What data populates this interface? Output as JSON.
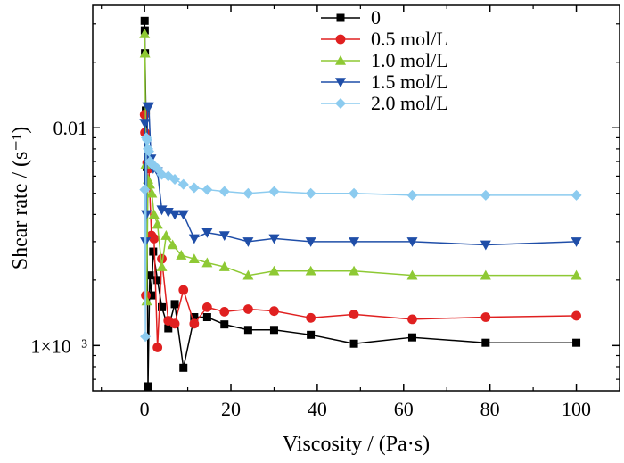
{
  "chart_data": {
    "type": "line",
    "xlabel": "Viscosity / (Pa·s)",
    "ylabel": "Shear rate / (s⁻¹)",
    "xlim": [
      -12,
      110
    ],
    "ylim": [
      0.00062,
      0.0365
    ],
    "yscale": "log",
    "x_ticks": [
      0,
      20,
      40,
      60,
      80,
      100
    ],
    "x_tick_labels": [
      "0",
      "20",
      "40",
      "60",
      "80",
      "100"
    ],
    "y_ticks": [
      0.001,
      0.01
    ],
    "y_tick_labels": [
      "1×10⁻³",
      "0.01"
    ],
    "grid": false,
    "legend": "top-center",
    "series": [
      {
        "name": "0",
        "color": "#000000",
        "marker": "square",
        "x": [
          0.02,
          0.05,
          0.1,
          0.3,
          0.5,
          0.8,
          1.2,
          1.6,
          2.0,
          3.0,
          4.0,
          5.5,
          7.0,
          9.0,
          11.5,
          14.5,
          18.5,
          24,
          30,
          38.5,
          48.5,
          62,
          79,
          100
        ],
        "y": [
          0.031,
          0.028,
          0.022,
          0.012,
          0.0066,
          0.00065,
          0.0021,
          0.0017,
          0.0027,
          0.002,
          0.0015,
          0.0012,
          0.00155,
          0.00079,
          0.00135,
          0.00135,
          0.00125,
          0.00118,
          0.00118,
          0.00112,
          0.00102,
          0.00109,
          0.00103,
          0.00103
        ]
      },
      {
        "name": "0.5 mol/L",
        "color": "#e02020",
        "marker": "circle",
        "x": [
          0.02,
          0.1,
          0.3,
          0.6,
          1.0,
          1.6,
          2.2,
          3.0,
          4.0,
          5.5,
          7.0,
          9.0,
          11.5,
          14.5,
          18.5,
          24,
          30,
          38.5,
          48.5,
          62,
          79,
          100
        ],
        "y": [
          0.0115,
          0.0095,
          0.0017,
          0.0069,
          0.0065,
          0.0032,
          0.0031,
          0.00098,
          0.0025,
          0.0013,
          0.00126,
          0.0018,
          0.00126,
          0.0015,
          0.00143,
          0.00147,
          0.00144,
          0.00134,
          0.00139,
          0.00132,
          0.00135,
          0.00137
        ]
      },
      {
        "name": "1.0 mol/L",
        "color": "#8ec934",
        "marker": "triangle-up",
        "x": [
          0.02,
          0.1,
          0.3,
          0.5,
          0.8,
          1.2,
          1.7,
          2.2,
          3.0,
          4.0,
          5.0,
          6.5,
          8.5,
          11.5,
          14.5,
          18.5,
          24,
          30,
          38.5,
          48.5,
          62,
          79,
          100
        ],
        "y": [
          0.027,
          0.022,
          0.0068,
          0.0016,
          0.0058,
          0.0055,
          0.005,
          0.004,
          0.0036,
          0.0023,
          0.0032,
          0.0029,
          0.0026,
          0.0025,
          0.0024,
          0.0023,
          0.0021,
          0.0022,
          0.0022,
          0.0022,
          0.0021,
          0.0021,
          0.0021
        ]
      },
      {
        "name": "1.5 mol/L",
        "color": "#1f4ea8",
        "marker": "triangle-down",
        "x": [
          0.05,
          0.2,
          0.4,
          0.7,
          1.0,
          1.5,
          2.0,
          3.0,
          4.0,
          5.5,
          7.0,
          9.0,
          11.5,
          14.5,
          18.5,
          24,
          30,
          38.5,
          48.5,
          62,
          79,
          100
        ],
        "y": [
          0.0105,
          0.003,
          0.004,
          0.0125,
          0.0125,
          0.0072,
          0.0065,
          0.0063,
          0.0042,
          0.0041,
          0.004,
          0.004,
          0.0031,
          0.0033,
          0.0032,
          0.003,
          0.0031,
          0.003,
          0.003,
          0.003,
          0.0029,
          0.003
        ]
      },
      {
        "name": "2.0 mol/L",
        "color": "#8ccbef",
        "marker": "diamond",
        "x": [
          0.05,
          0.2,
          0.4,
          0.6,
          0.8,
          1.0,
          1.3,
          1.7,
          2.2,
          3.0,
          4.0,
          5.5,
          7.0,
          9.0,
          11.5,
          14.5,
          18.5,
          24,
          30,
          38.5,
          48.5,
          62,
          79,
          100
        ],
        "y": [
          0.0052,
          0.0011,
          0.009,
          0.0088,
          0.008,
          0.0078,
          0.007,
          0.0068,
          0.0067,
          0.0065,
          0.0061,
          0.006,
          0.0058,
          0.0055,
          0.0053,
          0.0052,
          0.0051,
          0.005,
          0.0051,
          0.005,
          0.005,
          0.0049,
          0.0049,
          0.0049
        ]
      }
    ]
  }
}
